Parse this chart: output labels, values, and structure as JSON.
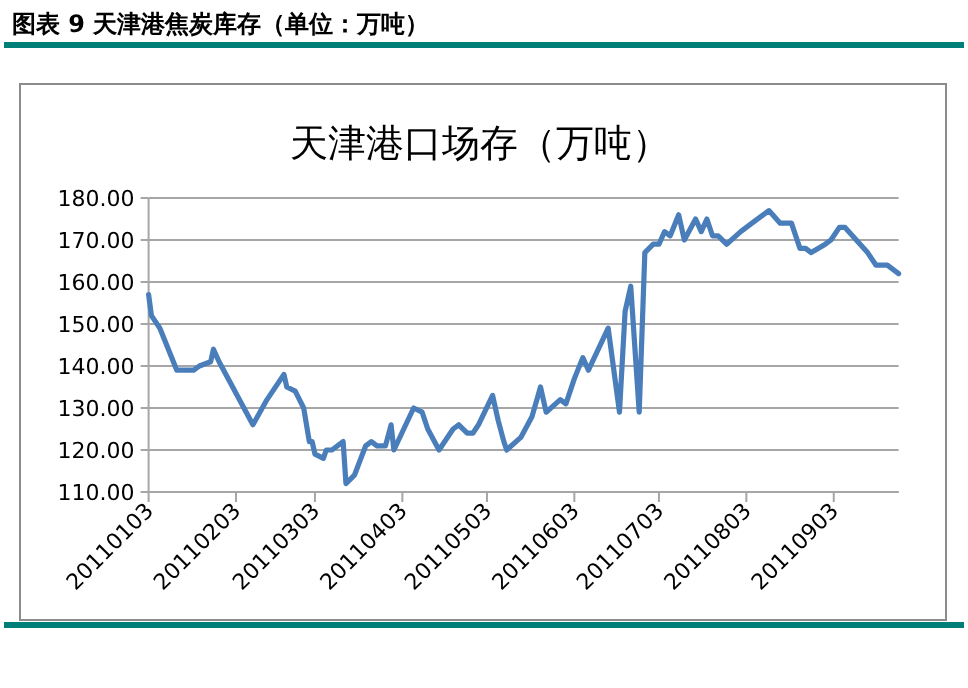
{
  "chart_data": {
    "type": "line",
    "title": "图表 9  天津港焦炭库存（单位：万吨）",
    "subtitle": "天津港口场存（万吨）",
    "x": [
      "2011-01-03",
      "2011-01-04",
      "2011-01-07",
      "2011-01-13",
      "2011-01-16",
      "2011-01-19",
      "2011-01-21",
      "2011-01-25",
      "2011-01-26",
      "2011-01-28",
      "2011-02-09",
      "2011-02-14",
      "2011-02-20",
      "2011-02-21",
      "2011-02-24",
      "2011-02-27",
      "2011-03-01",
      "2011-03-02",
      "2011-03-03",
      "2011-03-06",
      "2011-03-07",
      "2011-03-09",
      "2011-03-13",
      "2011-03-14",
      "2011-03-17",
      "2011-03-21",
      "2011-03-23",
      "2011-03-25",
      "2011-03-28",
      "2011-03-30",
      "2011-03-31",
      "2011-04-07",
      "2011-04-10",
      "2011-04-12",
      "2011-04-16",
      "2011-04-21",
      "2011-04-23",
      "2011-04-26",
      "2011-04-28",
      "2011-04-30",
      "2011-05-05",
      "2011-05-07",
      "2011-05-09",
      "2011-05-10",
      "2011-05-15",
      "2011-05-19",
      "2011-05-22",
      "2011-05-24",
      "2011-05-29",
      "2011-05-31",
      "2011-06-03",
      "2011-06-06",
      "2011-06-08",
      "2011-06-15",
      "2011-06-19",
      "2011-06-21",
      "2011-06-23",
      "2011-06-26",
      "2011-06-28",
      "2011-07-01",
      "2011-07-03",
      "2011-07-05",
      "2011-07-07",
      "2011-07-10",
      "2011-07-12",
      "2011-07-16",
      "2011-07-18",
      "2011-07-20",
      "2011-07-22",
      "2011-07-24",
      "2011-07-27",
      "2011-08-01",
      "2011-08-05",
      "2011-08-11",
      "2011-08-15",
      "2011-08-19",
      "2011-08-22",
      "2011-08-24",
      "2011-08-26",
      "2011-08-31",
      "2011-09-02",
      "2011-09-05",
      "2011-09-07",
      "2011-09-15",
      "2011-09-18",
      "2011-09-22",
      "2011-09-26"
    ],
    "series": [
      {
        "color": "#4a7ebb",
        "values": [
          157,
          152,
          149,
          139,
          139,
          139,
          140,
          141,
          144,
          141,
          126,
          132,
          138,
          135,
          134,
          130,
          122,
          122,
          119,
          118,
          120,
          120,
          122,
          112,
          114,
          121,
          122,
          121,
          121,
          126,
          120,
          130,
          129,
          125,
          120,
          125,
          126,
          124,
          124,
          126,
          133,
          127,
          122,
          120,
          123,
          128,
          135,
          129,
          132,
          131,
          137,
          142,
          139,
          149,
          129,
          153,
          159,
          129,
          167,
          169,
          169,
          172,
          171,
          176,
          170,
          175,
          172,
          175,
          171,
          171,
          169,
          172,
          174,
          177,
          174,
          174,
          168,
          168,
          167,
          169,
          170,
          173,
          173,
          167,
          164,
          164,
          162
        ]
      }
    ],
    "xlim": [
      "2011-01-03",
      "2011-09-26"
    ],
    "xticks": [
      {
        "value": "2011-01-03",
        "label": "20110103"
      },
      {
        "value": "2011-02-03",
        "label": "20110203"
      },
      {
        "value": "2011-03-03",
        "label": "20110303"
      },
      {
        "value": "2011-04-03",
        "label": "20110403"
      },
      {
        "value": "2011-05-03",
        "label": "20110503"
      },
      {
        "value": "2011-06-03",
        "label": "20110603"
      },
      {
        "value": "2011-07-03",
        "label": "20110703"
      },
      {
        "value": "2011-08-03",
        "label": "20110803"
      },
      {
        "value": "2011-09-03",
        "label": "20110903"
      }
    ],
    "ylim": [
      110,
      180
    ],
    "yticks": [
      {
        "value": 110,
        "label": "110.00"
      },
      {
        "value": 120,
        "label": "120.00"
      },
      {
        "value": 130,
        "label": "130.00"
      },
      {
        "value": 140,
        "label": "140.00"
      },
      {
        "value": 150,
        "label": "150.00"
      },
      {
        "value": 160,
        "label": "160.00"
      },
      {
        "value": 170,
        "label": "170.00"
      },
      {
        "value": 180,
        "label": "180.00"
      }
    ],
    "grid": "y",
    "marker": "none",
    "line_style": "solid"
  }
}
